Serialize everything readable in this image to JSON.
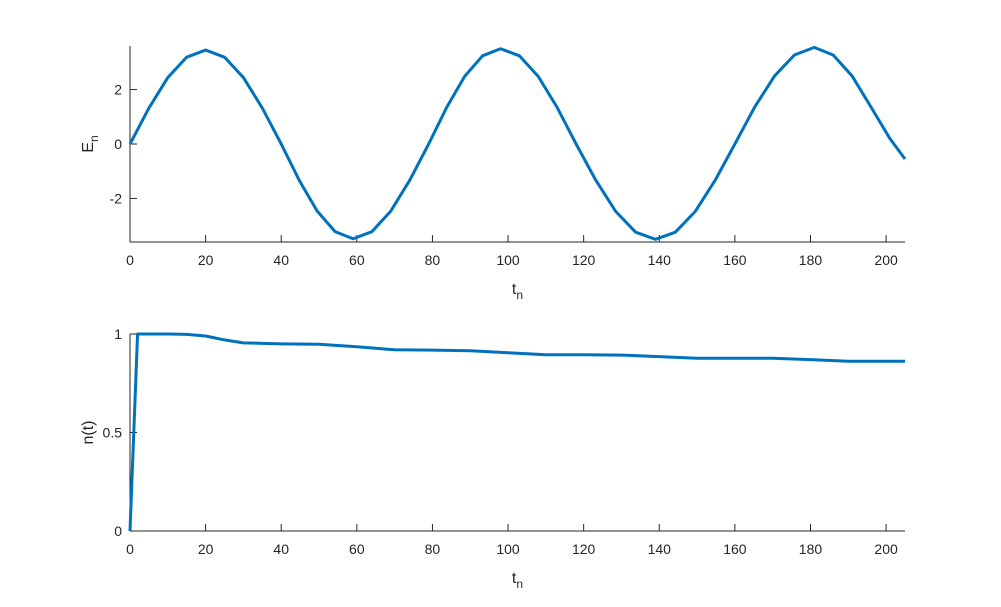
{
  "chart_data": [
    {
      "type": "line",
      "xlabel": "t",
      "xlabel_subscript": "n",
      "ylabel": "E",
      "ylabel_subscript": "n",
      "x": [
        0,
        5,
        10,
        15,
        20,
        25,
        30,
        35,
        40,
        44.75,
        49.5,
        54.25,
        59,
        64,
        69,
        74,
        79,
        83.75,
        88.5,
        93.25,
        98,
        103,
        108,
        113,
        118,
        123.25,
        128.5,
        133.75,
        139,
        144.25,
        149.5,
        154.75,
        160,
        165.25,
        170.5,
        175.75,
        181,
        186,
        191,
        196,
        201,
        205
      ],
      "series": [
        {
          "color": "#0072bd",
          "values": [
            0,
            1.32,
            2.44,
            3.19,
            3.45,
            3.19,
            2.44,
            1.32,
            0,
            -1.33,
            -2.46,
            -3.22,
            -3.48,
            -3.22,
            -2.46,
            -1.33,
            0,
            1.34,
            2.48,
            3.24,
            3.5,
            3.24,
            2.48,
            1.34,
            0,
            -1.34,
            -2.48,
            -3.24,
            -3.5,
            -3.24,
            -2.48,
            -1.34,
            0,
            1.36,
            2.5,
            3.27,
            3.55,
            3.27,
            2.5,
            1.36,
            0.2,
            -0.55
          ]
        }
      ],
      "xlim": [
        0,
        205
      ],
      "xticks": [
        0,
        20,
        40,
        60,
        80,
        100,
        120,
        140,
        160,
        180,
        200
      ],
      "ylim": [
        -3.6,
        3.6
      ],
      "yticks": [
        -2,
        0,
        2
      ]
    },
    {
      "type": "line",
      "xlabel": "t",
      "xlabel_subscript": "n",
      "ylabel": "n(t)",
      "x": [
        0,
        1,
        2,
        5,
        10,
        15,
        20,
        25,
        30,
        40,
        50,
        60,
        70,
        80,
        90,
        100,
        110,
        120,
        130,
        140,
        150,
        160,
        170,
        180,
        190,
        200,
        205
      ],
      "series": [
        {
          "color": "#0072bd",
          "values": [
            0,
            0.5,
            1,
            1,
            1,
            0.998,
            0.99,
            0.97,
            0.955,
            0.95,
            0.948,
            0.935,
            0.92,
            0.918,
            0.915,
            0.905,
            0.895,
            0.895,
            0.893,
            0.885,
            0.877,
            0.877,
            0.877,
            0.87,
            0.862,
            0.862,
            0.862
          ]
        }
      ],
      "xlim": [
        0,
        205
      ],
      "xticks": [
        0,
        20,
        40,
        60,
        80,
        100,
        120,
        140,
        160,
        180,
        200
      ],
      "ylim": [
        0,
        1
      ],
      "yticks": [
        0,
        0.5,
        1
      ]
    }
  ]
}
